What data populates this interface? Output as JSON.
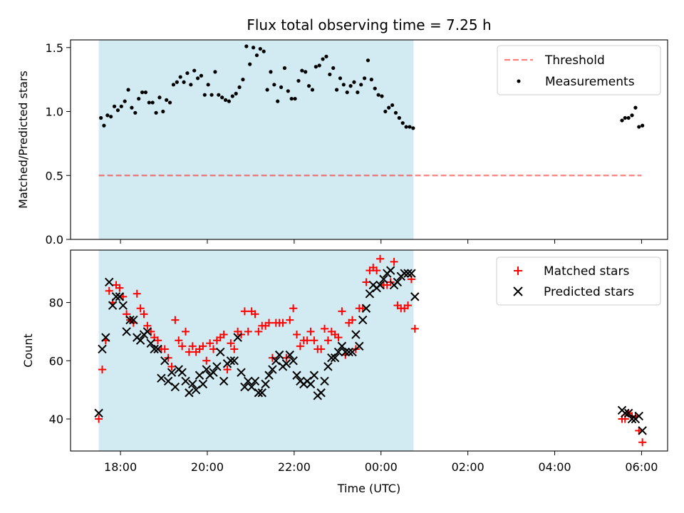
{
  "chart_data": {
    "title": "Flux total observing time = 7.25 h",
    "xlabel": "Time (UTC)",
    "x_unit": "hours (UTC, continuous past midnight)",
    "xlim": [
      16.85,
      30.6
    ],
    "x_ticks": [
      {
        "value": 18,
        "label": "18:00"
      },
      {
        "value": 20,
        "label": "20:00"
      },
      {
        "value": 22,
        "label": "22:00"
      },
      {
        "value": 24,
        "label": "00:00"
      },
      {
        "value": 26,
        "label": "02:00"
      },
      {
        "value": 28,
        "label": "04:00"
      },
      {
        "value": 30,
        "label": "06:00"
      }
    ],
    "colors": {
      "shade": "#add8e6",
      "threshold": "#ff0000",
      "measurements": "#000000",
      "matched": "#ff0000",
      "predicted": "#000000"
    },
    "top_panel": {
      "type": "scatter",
      "ylabel": "Matched/Predicted stars",
      "ylim": [
        0,
        1.56
      ],
      "y_ticks": [
        {
          "value": 0,
          "label": "0.0"
        },
        {
          "value": 0.5,
          "label": "0.5"
        },
        {
          "value": 1,
          "label": "1.0"
        },
        {
          "value": 1.5,
          "label": "1.5"
        }
      ],
      "shaded_span": [
        17.5,
        24.75
      ],
      "threshold": {
        "name": "Threshold",
        "y": 0.5,
        "x_range": [
          17.5,
          30.0
        ]
      },
      "legend": {
        "placement": "top-right",
        "entries": [
          "Threshold",
          "Measurements"
        ]
      },
      "series": [
        {
          "name": "Measurements",
          "x": [
            17.55,
            17.62,
            17.7,
            17.78,
            17.86,
            17.94,
            18.02,
            18.1,
            18.18,
            18.26,
            18.34,
            18.42,
            18.5,
            18.58,
            18.66,
            18.74,
            18.82,
            18.9,
            18.98,
            19.06,
            19.14,
            19.22,
            19.3,
            19.38,
            19.46,
            19.54,
            19.62,
            19.7,
            19.78,
            19.86,
            19.94,
            20.02,
            20.1,
            20.18,
            20.26,
            20.34,
            20.42,
            20.5,
            20.58,
            20.66,
            20.74,
            20.82,
            20.9,
            20.98,
            21.06,
            21.14,
            21.22,
            21.3,
            21.38,
            21.46,
            21.54,
            21.62,
            21.7,
            21.78,
            21.86,
            21.94,
            22.02,
            22.1,
            22.18,
            22.26,
            22.34,
            22.42,
            22.5,
            22.58,
            22.66,
            22.74,
            22.82,
            22.9,
            22.98,
            23.06,
            23.14,
            23.22,
            23.3,
            23.38,
            23.46,
            23.54,
            23.62,
            23.7,
            23.78,
            23.86,
            23.94,
            24.02,
            24.1,
            24.18,
            24.26,
            24.34,
            24.42,
            24.5,
            24.58,
            24.66,
            24.74,
            29.55,
            29.62,
            29.7,
            29.78,
            29.86,
            29.94,
            30.02
          ],
          "y": [
            0.95,
            0.89,
            0.97,
            0.96,
            1.04,
            1.01,
            1.04,
            1.08,
            1.17,
            1.03,
            0.99,
            1.1,
            1.15,
            1.15,
            1.07,
            1.07,
            0.99,
            1.11,
            1.0,
            1.09,
            1.07,
            1.21,
            1.23,
            1.27,
            1.23,
            1.3,
            1.21,
            1.32,
            1.26,
            1.28,
            1.13,
            1.21,
            1.13,
            1.31,
            1.13,
            1.11,
            1.09,
            1.08,
            1.12,
            1.14,
            1.19,
            1.25,
            1.51,
            1.37,
            1.5,
            1.44,
            1.49,
            1.47,
            1.17,
            1.31,
            1.21,
            1.08,
            1.19,
            1.34,
            1.16,
            1.1,
            1.1,
            1.24,
            1.32,
            1.31,
            1.2,
            1.17,
            1.35,
            1.36,
            1.41,
            1.43,
            1.29,
            1.34,
            1.17,
            1.26,
            1.21,
            1.15,
            1.2,
            1.23,
            1.15,
            1.21,
            1.26,
            1.4,
            1.25,
            1.18,
            1.13,
            1.12,
            1.0,
            1.03,
            1.05,
            0.99,
            0.95,
            0.91,
            0.88,
            0.88,
            0.87,
            0.93,
            0.95,
            0.95,
            0.97,
            1.03,
            0.88,
            0.89
          ]
        }
      ]
    },
    "bottom_panel": {
      "type": "scatter",
      "ylabel": "Count",
      "ylim": [
        29,
        98
      ],
      "y_ticks": [
        {
          "value": 40,
          "label": "40"
        },
        {
          "value": 60,
          "label": "60"
        },
        {
          "value": 80,
          "label": "80"
        }
      ],
      "shaded_span": [
        17.5,
        24.75
      ],
      "legend": {
        "placement": "top-right",
        "entries": [
          "Matched stars",
          "Predicted stars"
        ]
      },
      "series": [
        {
          "name": "Matched stars",
          "marker": "plus",
          "x": [
            17.5,
            17.58,
            17.66,
            17.74,
            17.82,
            17.9,
            17.98,
            18.06,
            18.14,
            18.22,
            18.3,
            18.38,
            18.46,
            18.54,
            18.62,
            18.7,
            18.78,
            18.86,
            18.94,
            19.02,
            19.1,
            19.18,
            19.26,
            19.34,
            19.42,
            19.5,
            19.58,
            19.66,
            19.74,
            19.82,
            19.9,
            19.98,
            20.06,
            20.14,
            20.22,
            20.3,
            20.38,
            20.46,
            20.54,
            20.62,
            20.7,
            20.78,
            20.86,
            20.94,
            21.02,
            21.1,
            21.18,
            21.26,
            21.34,
            21.42,
            21.5,
            21.58,
            21.66,
            21.74,
            21.82,
            21.9,
            21.98,
            22.06,
            22.14,
            22.22,
            22.3,
            22.38,
            22.46,
            22.54,
            22.62,
            22.7,
            22.78,
            22.86,
            22.94,
            23.02,
            23.1,
            23.18,
            23.26,
            23.34,
            23.42,
            23.5,
            23.58,
            23.66,
            23.74,
            23.82,
            23.9,
            23.98,
            24.06,
            24.14,
            24.22,
            24.3,
            24.38,
            24.46,
            24.54,
            24.62,
            24.7,
            24.78,
            29.55,
            29.62,
            29.7,
            29.78,
            29.86,
            29.94,
            30.02
          ],
          "y": [
            40,
            57,
            67,
            84,
            80,
            86,
            85,
            82,
            76,
            74,
            73,
            83,
            78,
            76,
            72,
            70,
            68,
            67,
            64,
            64,
            61,
            58,
            74,
            67,
            65,
            70,
            63,
            65,
            63,
            64,
            65,
            60,
            66,
            64,
            67,
            68,
            69,
            57,
            66,
            64,
            70,
            69,
            77,
            70,
            77,
            76,
            70,
            72,
            72,
            73,
            61,
            73,
            73,
            73,
            61,
            74,
            78,
            69,
            65,
            67,
            67,
            70,
            67,
            64,
            64,
            71,
            67,
            70,
            69,
            68,
            77,
            62,
            73,
            74,
            64,
            78,
            78,
            87,
            91,
            92,
            91,
            95,
            86,
            86,
            87,
            94,
            79,
            78,
            78,
            79,
            88,
            71,
            40,
            40,
            42,
            41,
            41,
            36,
            32
          ]
        },
        {
          "name": "Predicted stars",
          "marker": "x",
          "x": [
            17.5,
            17.58,
            17.66,
            17.74,
            17.82,
            17.9,
            17.98,
            18.06,
            18.14,
            18.22,
            18.3,
            18.38,
            18.46,
            18.54,
            18.62,
            18.7,
            18.78,
            18.86,
            18.94,
            19.02,
            19.1,
            19.18,
            19.26,
            19.34,
            19.42,
            19.5,
            19.58,
            19.66,
            19.74,
            19.82,
            19.9,
            19.98,
            20.06,
            20.14,
            20.22,
            20.3,
            20.38,
            20.46,
            20.54,
            20.62,
            20.7,
            20.78,
            20.86,
            20.94,
            21.02,
            21.1,
            21.18,
            21.26,
            21.34,
            21.42,
            21.5,
            21.58,
            21.66,
            21.74,
            21.82,
            21.9,
            21.98,
            22.06,
            22.14,
            22.22,
            22.3,
            22.38,
            22.46,
            22.54,
            22.62,
            22.7,
            22.78,
            22.86,
            22.94,
            23.02,
            23.1,
            23.18,
            23.26,
            23.34,
            23.42,
            23.5,
            23.58,
            23.66,
            23.74,
            23.82,
            23.9,
            23.98,
            24.06,
            24.14,
            24.22,
            24.3,
            24.38,
            24.46,
            24.54,
            24.62,
            24.7,
            24.78,
            29.55,
            29.62,
            29.7,
            29.78,
            29.86,
            29.94,
            30.02
          ],
          "y": [
            42,
            64,
            68,
            87,
            79,
            82,
            82,
            79,
            70,
            74,
            74,
            68,
            67,
            69,
            70,
            66,
            64,
            64,
            54,
            60,
            53,
            56,
            51,
            57,
            56,
            53,
            49,
            52,
            50,
            55,
            52,
            57,
            55,
            56,
            58,
            63,
            53,
            59,
            60,
            60,
            68,
            56,
            51,
            53,
            51,
            53,
            49,
            49,
            52,
            55,
            57,
            60,
            62,
            58,
            59,
            62,
            60,
            55,
            53,
            52,
            53,
            52,
            55,
            48,
            49,
            53,
            58,
            61,
            61,
            63,
            65,
            63,
            63,
            63,
            69,
            65,
            74,
            78,
            83,
            86,
            85,
            86,
            88,
            90,
            91,
            86,
            87,
            89,
            90,
            90,
            90,
            82,
            43,
            42,
            42,
            40,
            40,
            41,
            36
          ]
        }
      ]
    }
  }
}
